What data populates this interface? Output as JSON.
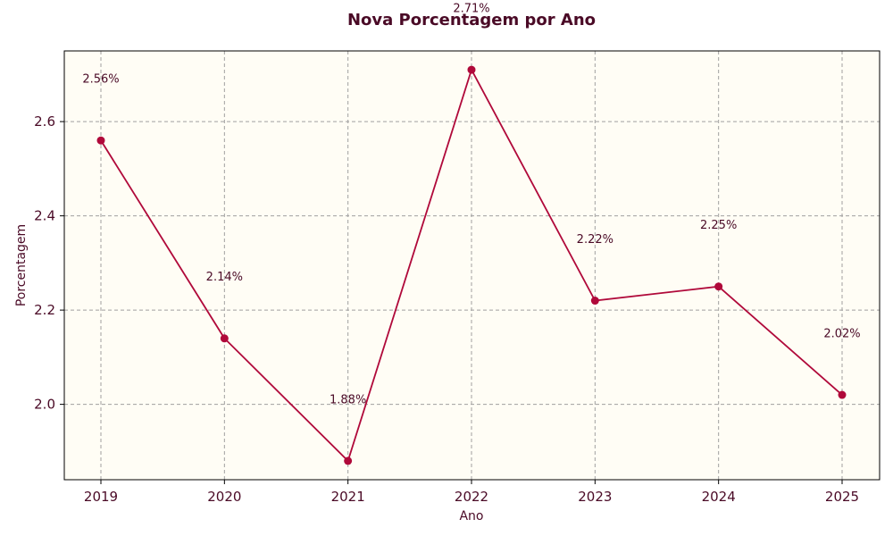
{
  "chart_data": {
    "type": "line",
    "title": "Nova Porcentagem por Ano",
    "xlabel": "Ano",
    "ylabel": "Porcentagem",
    "categories": [
      "2019",
      "2020",
      "2021",
      "2022",
      "2023",
      "2024",
      "2025"
    ],
    "series": [
      {
        "values": [
          2.56,
          2.14,
          1.88,
          2.71,
          2.22,
          2.25,
          2.02
        ],
        "labels": [
          "2.56%",
          "2.14%",
          "1.88%",
          "2.71%",
          "2.22%",
          "2.25%",
          "2.02%"
        ],
        "color": "#b0093a"
      }
    ],
    "ylim": [
      1.84,
      2.75
    ],
    "yticks": [
      2.0,
      2.2,
      2.4,
      2.6
    ],
    "ytick_labels": [
      "2.0",
      "2.2",
      "2.4",
      "2.6"
    ],
    "grid": true,
    "marker": "circle",
    "background_color": "#fffdf5",
    "text_color": "#4a0a26",
    "grid_color": "#a0a0a0"
  }
}
